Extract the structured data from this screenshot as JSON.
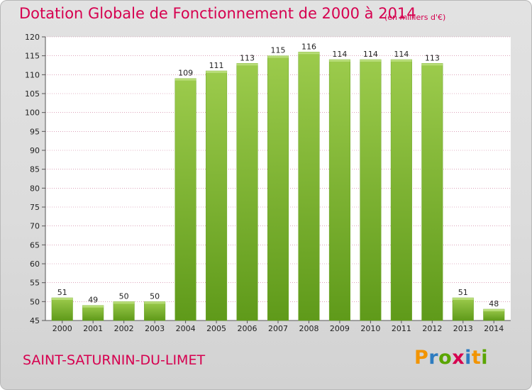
{
  "chart_data": {
    "type": "bar",
    "title": "Dotation Globale de Fonctionnement de 2000 à 2014",
    "subtitle": "(en milliers d'€)",
    "categories": [
      "2000",
      "2001",
      "2002",
      "2003",
      "2004",
      "2005",
      "2006",
      "2007",
      "2008",
      "2009",
      "2010",
      "2011",
      "2012",
      "2013",
      "2014"
    ],
    "values": [
      51,
      49,
      50,
      50,
      109,
      111,
      113,
      115,
      116,
      114,
      114,
      114,
      113,
      51,
      48
    ],
    "ylim": [
      45,
      120
    ],
    "yticks": [
      45,
      50,
      55,
      60,
      65,
      70,
      75,
      80,
      85,
      90,
      95,
      100,
      105,
      110,
      115,
      120
    ],
    "grid": true,
    "bar_color": "#7bb52f",
    "bar_highlight_color": "#9ccb4c",
    "grid_color": "#c86a8f",
    "xlabel": "",
    "ylabel": ""
  },
  "footer": {
    "commune": "SAINT-SATURNIN-DU-LIMET",
    "logo_letters": [
      "P",
      "r",
      "o",
      "x",
      "i",
      "t",
      "i"
    ]
  },
  "colors": {
    "title": "#d6004f",
    "logo_p": "#f29400",
    "logo_r": "#2e7cc0",
    "logo_o": "#5aa500",
    "logo_x": "#d6004f"
  }
}
